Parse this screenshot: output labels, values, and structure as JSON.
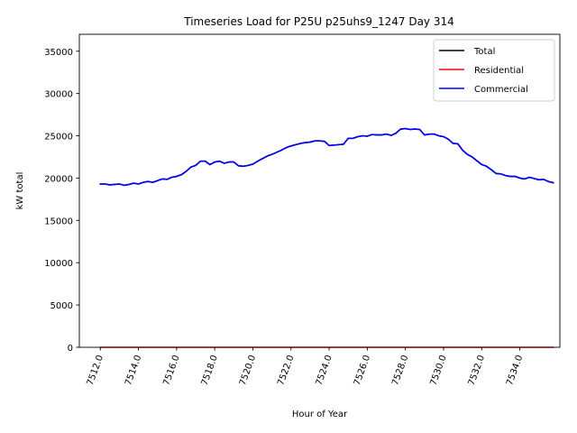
{
  "chart_data": {
    "type": "line",
    "title": "Timeseries Load for P25U p25uhs9_1247  Day 314",
    "xlabel": "Hour of Year",
    "ylabel": "kW total",
    "xlim": [
      7510.9,
      7536.1
    ],
    "ylim": [
      0,
      37000
    ],
    "xticks": [
      7512,
      7514,
      7516,
      7518,
      7520,
      7522,
      7524,
      7526,
      7528,
      7530,
      7532,
      7534
    ],
    "xtick_labels": [
      "7512.0",
      "7514.0",
      "7516.0",
      "7518.0",
      "7520.0",
      "7522.0",
      "7524.0",
      "7526.0",
      "7528.0",
      "7530.0",
      "7532.0",
      "7534.0"
    ],
    "yticks": [
      0,
      5000,
      10000,
      15000,
      20000,
      25000,
      30000,
      35000
    ],
    "ytick_labels": [
      "0",
      "5000",
      "10000",
      "15000",
      "20000",
      "25000",
      "30000",
      "35000"
    ],
    "legend_position": "top-right",
    "x": [
      7512.0,
      7512.25,
      7512.5,
      7512.75,
      7513.0,
      7513.25,
      7513.5,
      7513.75,
      7514.0,
      7514.25,
      7514.5,
      7514.75,
      7515.0,
      7515.25,
      7515.5,
      7515.75,
      7516.0,
      7516.25,
      7516.5,
      7516.75,
      7517.0,
      7517.25,
      7517.5,
      7517.75,
      7518.0,
      7518.25,
      7518.5,
      7518.75,
      7519.0,
      7519.25,
      7519.5,
      7519.75,
      7520.0,
      7520.25,
      7520.5,
      7520.75,
      7521.0,
      7521.25,
      7521.5,
      7521.75,
      7522.0,
      7522.25,
      7522.5,
      7522.75,
      7523.0,
      7523.25,
      7523.5,
      7523.75,
      7524.0,
      7524.25,
      7524.5,
      7524.75,
      7525.0,
      7525.25,
      7525.5,
      7525.75,
      7526.0,
      7526.25,
      7526.5,
      7526.75,
      7527.0,
      7527.25,
      7527.5,
      7527.75,
      7528.0,
      7528.25,
      7528.5,
      7528.75,
      7529.0,
      7529.25,
      7529.5,
      7529.75,
      7530.0,
      7530.25,
      7530.5,
      7530.75,
      7531.0,
      7531.25,
      7531.5,
      7531.75,
      7532.0,
      7532.25,
      7532.5,
      7532.75,
      7533.0,
      7533.25,
      7533.5,
      7533.75,
      7534.0,
      7534.25,
      7534.5,
      7534.75,
      7535.0,
      7535.25,
      7535.5,
      7535.75
    ],
    "series": [
      {
        "name": "Total",
        "color": "#000000",
        "values": [
          19300,
          19300,
          19200,
          19250,
          19300,
          19150,
          19250,
          19400,
          19300,
          19500,
          19600,
          19500,
          19700,
          19900,
          19850,
          20100,
          20200,
          20400,
          20800,
          21300,
          21500,
          22000,
          22000,
          21600,
          21900,
          22000,
          21750,
          21900,
          21900,
          21450,
          21400,
          21500,
          21650,
          22000,
          22300,
          22600,
          22800,
          23050,
          23300,
          23600,
          23800,
          23950,
          24100,
          24200,
          24250,
          24400,
          24400,
          24350,
          23850,
          23900,
          23950,
          24000,
          24700,
          24700,
          24900,
          25000,
          24950,
          25150,
          25100,
          25100,
          25200,
          25050,
          25300,
          25800,
          25850,
          25750,
          25800,
          25750,
          25100,
          25200,
          25200,
          25000,
          24900,
          24600,
          24100,
          24050,
          23300,
          22800,
          22500,
          22050,
          21600,
          21400,
          21000,
          20550,
          20500,
          20300,
          20200,
          20200,
          20000,
          19900,
          20100,
          19950,
          19800,
          19850,
          19600,
          19450
        ]
      },
      {
        "name": "Residential",
        "color": "#ff0000",
        "values": [
          0,
          0,
          0,
          0,
          0,
          0,
          0,
          0,
          0,
          0,
          0,
          0,
          0,
          0,
          0,
          0,
          0,
          0,
          0,
          0,
          0,
          0,
          0,
          0,
          0,
          0,
          0,
          0,
          0,
          0,
          0,
          0,
          0,
          0,
          0,
          0,
          0,
          0,
          0,
          0,
          0,
          0,
          0,
          0,
          0,
          0,
          0,
          0,
          0,
          0,
          0,
          0,
          0,
          0,
          0,
          0,
          0,
          0,
          0,
          0,
          0,
          0,
          0,
          0,
          0,
          0,
          0,
          0,
          0,
          0,
          0,
          0,
          0,
          0,
          0,
          0,
          0,
          0,
          0,
          0,
          0,
          0,
          0,
          0,
          0,
          0,
          0,
          0,
          0,
          0,
          0,
          0,
          0,
          0,
          0,
          0
        ]
      },
      {
        "name": "Commercial",
        "color": "#0000ff",
        "values": [
          19300,
          19300,
          19200,
          19250,
          19300,
          19150,
          19250,
          19400,
          19300,
          19500,
          19600,
          19500,
          19700,
          19900,
          19850,
          20100,
          20200,
          20400,
          20800,
          21300,
          21500,
          22000,
          22000,
          21600,
          21900,
          22000,
          21750,
          21900,
          21900,
          21450,
          21400,
          21500,
          21650,
          22000,
          22300,
          22600,
          22800,
          23050,
          23300,
          23600,
          23800,
          23950,
          24100,
          24200,
          24250,
          24400,
          24400,
          24350,
          23850,
          23900,
          23950,
          24000,
          24700,
          24700,
          24900,
          25000,
          24950,
          25150,
          25100,
          25100,
          25200,
          25050,
          25300,
          25800,
          25850,
          25750,
          25800,
          25750,
          25100,
          25200,
          25200,
          25000,
          24900,
          24600,
          24100,
          24050,
          23300,
          22800,
          22500,
          22050,
          21600,
          21400,
          21000,
          20550,
          20500,
          20300,
          20200,
          20200,
          20000,
          19900,
          20100,
          19950,
          19800,
          19850,
          19600,
          19450
        ]
      }
    ]
  }
}
